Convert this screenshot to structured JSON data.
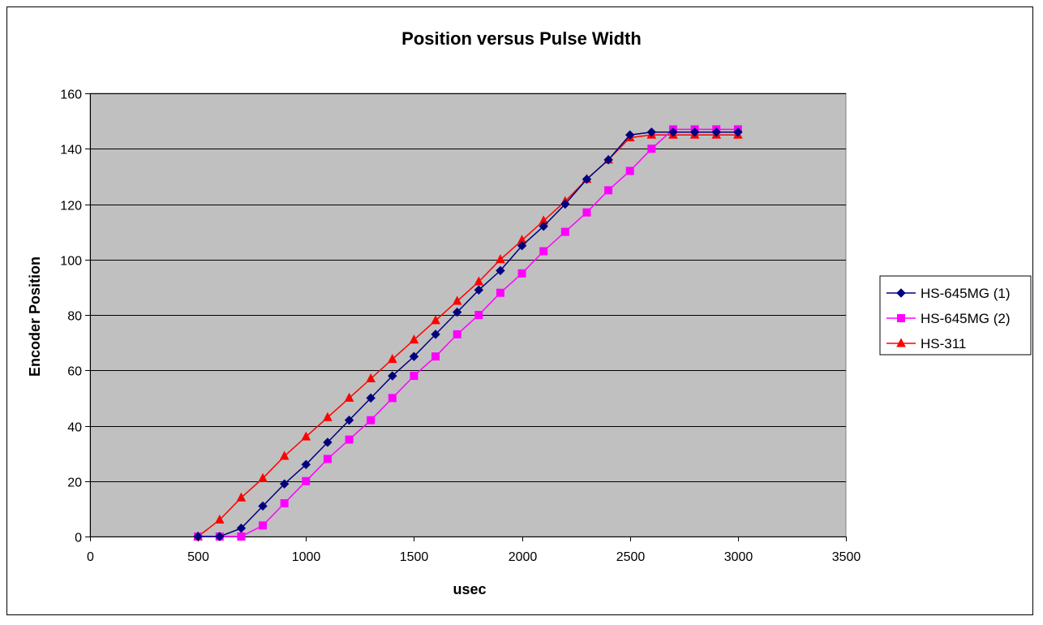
{
  "chart_data": {
    "type": "line",
    "title": "Position versus Pulse Width",
    "xlabel": "usec",
    "ylabel": "Encoder Position",
    "xlim": [
      0,
      3500
    ],
    "ylim": [
      0,
      160
    ],
    "xticks": [
      0,
      500,
      1000,
      1500,
      2000,
      2500,
      3000,
      3500
    ],
    "yticks": [
      0,
      20,
      40,
      60,
      80,
      100,
      120,
      140,
      160
    ],
    "grid": "horizontal",
    "legend_position": "right",
    "plot_background": "#c0c0c0",
    "series": [
      {
        "name": "HS-645MG (1)",
        "color": "#000080",
        "marker": "diamond",
        "x": [
          500,
          600,
          700,
          800,
          900,
          1000,
          1100,
          1200,
          1300,
          1400,
          1500,
          1600,
          1700,
          1800,
          1900,
          2000,
          2100,
          2200,
          2300,
          2400,
          2500,
          2600,
          2700,
          2800,
          2900,
          3000
        ],
        "values": [
          0,
          0,
          3,
          11,
          19,
          26,
          34,
          42,
          50,
          58,
          65,
          73,
          81,
          89,
          96,
          105,
          112,
          120,
          129,
          136,
          145,
          146,
          146,
          146,
          146,
          146
        ]
      },
      {
        "name": "HS-645MG (2)",
        "color": "#ff00ff",
        "marker": "square",
        "x": [
          500,
          600,
          700,
          800,
          900,
          1000,
          1100,
          1200,
          1300,
          1400,
          1500,
          1600,
          1700,
          1800,
          1900,
          2000,
          2100,
          2200,
          2300,
          2400,
          2500,
          2600,
          2700,
          2800,
          2900,
          3000
        ],
        "values": [
          0,
          0,
          0,
          4,
          12,
          20,
          28,
          35,
          42,
          50,
          58,
          65,
          73,
          80,
          88,
          95,
          103,
          110,
          117,
          125,
          132,
          140,
          147,
          147,
          147,
          147
        ]
      },
      {
        "name": "HS-311",
        "color": "#ff0000",
        "marker": "triangle",
        "x": [
          500,
          600,
          700,
          800,
          900,
          1000,
          1100,
          1200,
          1300,
          1400,
          1500,
          1600,
          1700,
          1800,
          1900,
          2000,
          2100,
          2200,
          2300,
          2400,
          2500,
          2600,
          2700,
          2800,
          2900,
          3000
        ],
        "values": [
          0,
          6,
          14,
          21,
          29,
          36,
          43,
          50,
          57,
          64,
          71,
          78,
          85,
          92,
          100,
          107,
          114,
          121,
          129,
          136,
          144,
          145,
          145,
          145,
          145,
          145
        ]
      }
    ]
  }
}
